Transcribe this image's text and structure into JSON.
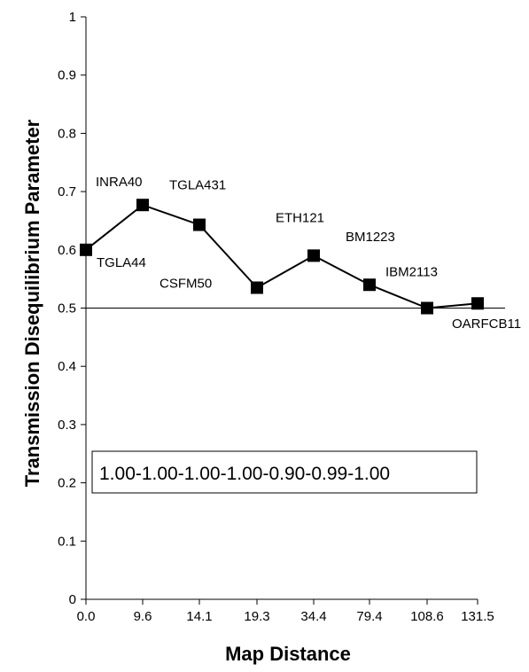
{
  "chart_data": {
    "type": "line",
    "title": "",
    "xlabel": "Map Distance",
    "ylabel": "Transmission Disequilibrium Parameter",
    "categories": [
      "0.0",
      "9.6",
      "14.1",
      "19.3",
      "34.4",
      "79.4",
      "108.6",
      "131.5"
    ],
    "point_labels": [
      "TGLA44",
      "INRA40",
      "TGLA431",
      "CSFM50",
      "ETH121",
      "BM1223",
      "IBM2113",
      "OARFCB11"
    ],
    "values": [
      0.6,
      0.677,
      0.643,
      0.535,
      0.59,
      0.54,
      0.5,
      0.508
    ],
    "ylim": [
      0,
      1
    ],
    "y_ticks": [
      "0",
      "0.1",
      "0.2",
      "0.3",
      "0.4",
      "0.5",
      "0.6",
      "0.7",
      "0.8",
      "0.9",
      "1"
    ],
    "reference_line": 0.5,
    "annotation": "1.00-1.00-1.00-1.00-0.90-0.99-1.00",
    "grid": false,
    "series_color": "#000000"
  }
}
